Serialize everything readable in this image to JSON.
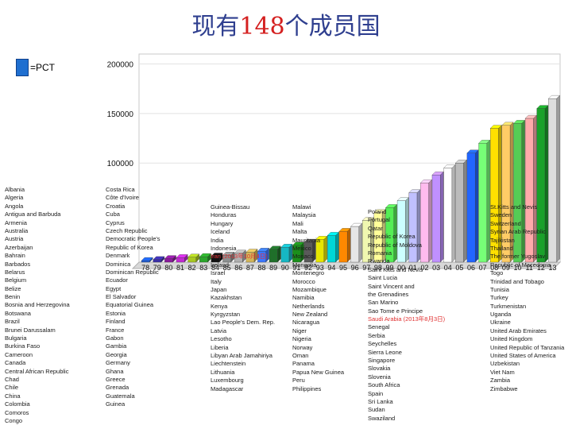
{
  "title": {
    "part1": "现有",
    "number": "148",
    "part2": "个成员国"
  },
  "legend": {
    "label": "=PCT",
    "color": "#1f6fd0"
  },
  "chart_data": {
    "type": "bar",
    "title": "现有148个成员国",
    "xlabel": "",
    "ylabel": "",
    "ylim": [
      0,
      210000
    ],
    "yticks": [
      100000,
      150000,
      200000
    ],
    "series": [
      {
        "name": "PCT",
        "color": "#1f6fd0"
      }
    ],
    "x_tick_labels": [
      "78",
      "79",
      "80",
      "81",
      "82",
      "83",
      "84",
      "85",
      "86",
      "87",
      "88",
      "89",
      "90",
      "91",
      "92",
      "93",
      "94",
      "95",
      "96",
      "97",
      "98",
      "99",
      "00",
      "01",
      "02",
      "03",
      "04",
      "05",
      "06",
      "07",
      "08",
      "09",
      "10",
      "11",
      "12",
      "13"
    ],
    "values": [
      1500,
      2500,
      3500,
      4500,
      5000,
      5500,
      6000,
      7000,
      9000,
      10000,
      11000,
      13000,
      15000,
      17000,
      20000,
      23000,
      27000,
      31000,
      36000,
      42000,
      50000,
      55000,
      62000,
      70000,
      80000,
      88000,
      95000,
      100000,
      110000,
      120000,
      135000,
      138000,
      140000,
      145000,
      155000,
      165000
    ],
    "colors": [
      "#1c5ee0",
      "#3b2fa8",
      "#8a1a9c",
      "#c22ad2",
      "#a8c820",
      "#2aa52a",
      "#111111",
      "#8c9090",
      "#b0b0b0",
      "#d2b65a",
      "#3a76ff",
      "#1f6f2a",
      "#16b7c3",
      "#1b8f1b",
      "#5a5a5a",
      "#e6e600",
      "#00d7d7",
      "#ff8800",
      "#e6e6e6",
      "#f0f7b0",
      "#ffff99",
      "#55ee55",
      "#ccffff",
      "#c0c0ff",
      "#ffbbee",
      "#c090ff",
      "#ffffff",
      "#bbbbbb",
      "#2266ff",
      "#77ff77",
      "#ffe000",
      "#ffcc66",
      "#55cc55",
      "#ffaaaa",
      "#1aa12a",
      "#dddddd",
      "#2b8fff",
      "#ff7f00",
      "#ee4411",
      "#b0b0c0",
      "#0a3a88",
      "#33aaaa",
      "#22aa44",
      "#007777",
      "#7a3300"
    ],
    "text_bar_index": 5,
    "text_bar_label": "Cote d'Ivoire"
  },
  "countries": {
    "col1": [
      "Albania",
      "Algeria",
      "Angola",
      "Antigua and Barbuda",
      "Armenia",
      "Australia",
      "Austria",
      "Azerbaijan",
      "Bahrain",
      "Barbados",
      "Belarus",
      "Belgium",
      "Belize",
      "Benin",
      "Bosnia and Herzegovina",
      "Botswana",
      "Brazil",
      "Brunei Darussalam",
      "Bulgaria",
      "Burkina Faso",
      "Cameroon",
      "Canada",
      "Central African Republic",
      "Chad",
      "Chile",
      "China",
      "Colombia",
      "Comoros",
      "Congo"
    ],
    "col2": [
      "Costa Rica",
      "Côte d'Ivoire",
      "Croatia",
      "Cuba",
      "Cyprus",
      "Czech Republic",
      "Democratic People's",
      "Republic of Korea",
      "Denmark",
      "Dominica",
      "Dominican Republic",
      "Ecuador",
      "Egypt",
      "El Salvador",
      "Equatorial Guinea",
      "Estonia",
      "Finland",
      "France",
      "Gabon",
      "Gambia",
      "Georgia",
      "Germany",
      "Ghana",
      "Greece",
      "Grenada",
      "Guatemala",
      "Guinea"
    ],
    "col3": [
      "Guinea-Bissau",
      "Honduras",
      "Hungary",
      "Iceland",
      "India",
      "Indonesia",
      "Iran (2013年10月4日)",
      "Ireland",
      "Israel",
      "Italy",
      "Japan",
      "Kazakhstan",
      "Kenya",
      "Kyrgyzstan",
      "Lao People's Dem. Rep.",
      "Latvia",
      "Lesotho",
      "Liberia",
      "Libyan Arab Jamahiriya",
      "Liechtenstein",
      "Lithuania",
      "Luxembourg",
      "Madagascar"
    ],
    "col4": [
      "Malawi",
      "Malaysia",
      "Mali",
      "Malta",
      "Mauritania",
      "Mexico",
      "Monaco",
      "Mongolia",
      "Montenegro",
      "Morocco",
      "Mozambique",
      "Namibia",
      "Netherlands",
      "New Zealand",
      "Nicaragua",
      "Niger",
      "Nigeria",
      "Norway",
      "Oman",
      "Panama",
      "Papua New Guinea",
      "Peru",
      "Philippines"
    ],
    "col5": [
      "Poland",
      "Portugal",
      "Qatar",
      "Republic of Korea",
      "Republic of Moldova",
      "Romania",
      "Rwanda",
      "Saint Kitts and Nevis",
      "Saint Lucia",
      "Saint Vincent and",
      "the Grenadines",
      "San Marino",
      "Sao Tome e Principe",
      "Saudi Arabia (2013年8月3日)",
      "Senegal",
      "Serbia",
      "Seychelles",
      "Sierra Leone",
      "Singapore",
      "Slovakia",
      "Slovenia",
      "South Africa",
      "Spain",
      "Sri Lanka",
      "Sudan",
      "Swaziland"
    ],
    "col6": [
      "St.Kitts and Nevis",
      "Sweden",
      "Switzerland",
      "Syrian Arab Republic",
      "Tajikistan",
      "Thailand",
      "The former Yugoslav",
      "Republic of Macedonia",
      "Togo",
      "Trinidad and Tobago",
      "Tunisia",
      "Turkey",
      "Turkmenistan",
      "Uganda",
      "Ukraine",
      "United Arab Emirates",
      "United Kingdom",
      "United Republic of Tanzania",
      "United States of America",
      "Uzbekistan",
      "Viet Nam",
      "Zambia",
      "Zimbabwe"
    ]
  }
}
